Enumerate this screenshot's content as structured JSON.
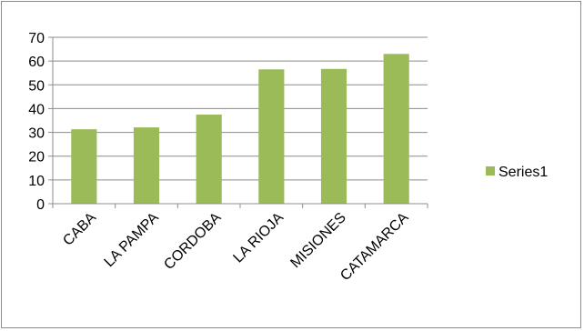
{
  "chart_data": {
    "type": "bar",
    "categories": [
      "CABA",
      "LA PAMPA",
      "CORDOBA",
      "LA RIOJA",
      "MISIONES",
      "CATAMARCA"
    ],
    "series": [
      {
        "name": "Series1",
        "values": [
          31.3,
          32.1,
          37.5,
          56.5,
          56.7,
          63.0
        ],
        "color": "#9bbb59"
      }
    ],
    "ylim": [
      0,
      70
    ],
    "yticks": [
      0,
      10,
      20,
      30,
      40,
      50,
      60,
      70
    ],
    "grid": true,
    "legend": "right",
    "title": "",
    "xlabel": "",
    "ylabel": ""
  }
}
